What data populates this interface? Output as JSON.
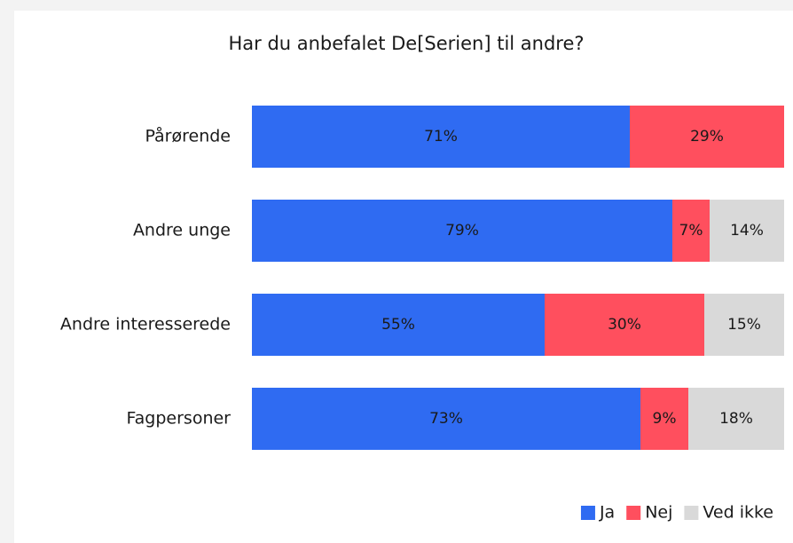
{
  "chart_data": {
    "type": "stacked-bar-horizontal",
    "title": "Har du anbefalet De[Serien] til andre?",
    "categories": [
      "Pårørende",
      "Andre unge",
      "Andre interesserede",
      "Fagpersoner"
    ],
    "xlim": [
      0,
      100
    ],
    "legend": "bottom-right",
    "series": [
      {
        "name": "Ja",
        "color": "#2f6bf2",
        "values": [
          71,
          79,
          55,
          73
        ],
        "value_labels": [
          "71%",
          "79%",
          "55%",
          "73%"
        ]
      },
      {
        "name": "Nej",
        "color": "#ff4f5e",
        "values": [
          29,
          7,
          30,
          9
        ],
        "value_labels": [
          "29%",
          "7%",
          "30%",
          "9%"
        ]
      },
      {
        "name": "Ved ikke",
        "color": "#d9d9d9",
        "values": [
          null,
          14,
          15,
          18
        ],
        "value_labels": [
          null,
          "14%",
          "15%",
          "18%"
        ]
      }
    ]
  }
}
